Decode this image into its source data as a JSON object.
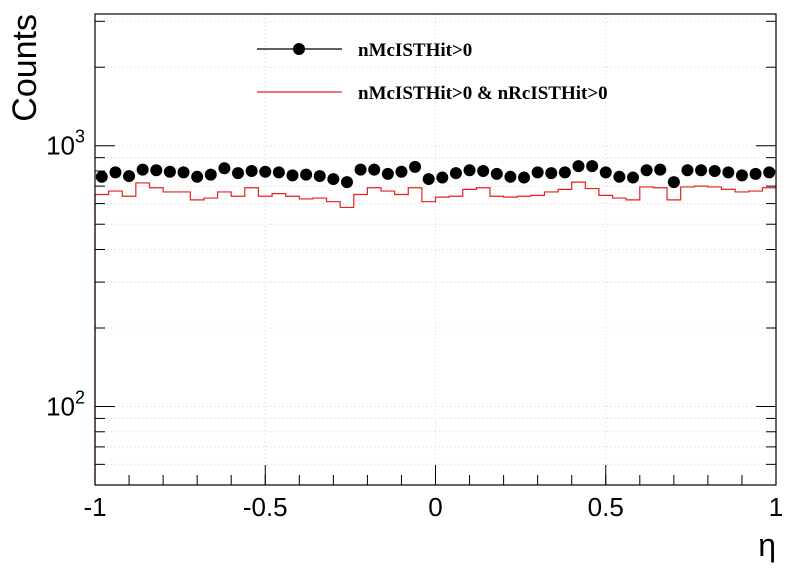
{
  "chart_data": {
    "type": "line",
    "xlabel": "η",
    "ylabel": "Counts",
    "xlim": [
      -1,
      1
    ],
    "ylim": [
      50,
      3200
    ],
    "y_scale": "log",
    "grid": true,
    "legend_position": "top-center",
    "x_ticks": [
      -1,
      -0.5,
      0,
      0.5,
      1
    ],
    "x_tick_labels": [
      "-1",
      "-0.5",
      "0",
      "0.5",
      "1"
    ],
    "y_ticks": [
      {
        "value": 100,
        "base": "10",
        "exp": "2"
      },
      {
        "value": 1000,
        "base": "10",
        "exp": "3"
      }
    ],
    "series": [
      {
        "name": "nMcISTHit>0",
        "style": "markers",
        "color": "#000000",
        "x": [
          -0.98,
          -0.94,
          -0.9,
          -0.86,
          -0.82,
          -0.78,
          -0.74,
          -0.7,
          -0.66,
          -0.62,
          -0.58,
          -0.54,
          -0.5,
          -0.46,
          -0.42,
          -0.38,
          -0.34,
          -0.3,
          -0.26,
          -0.22,
          -0.18,
          -0.14,
          -0.1,
          -0.06,
          -0.02,
          0.02,
          0.06,
          0.1,
          0.14,
          0.18,
          0.22,
          0.26,
          0.3,
          0.34,
          0.38,
          0.42,
          0.46,
          0.5,
          0.54,
          0.58,
          0.62,
          0.66,
          0.7,
          0.74,
          0.78,
          0.82,
          0.86,
          0.9,
          0.94,
          0.98
        ],
        "values": [
          760,
          790,
          765,
          810,
          805,
          795,
          790,
          760,
          775,
          820,
          785,
          800,
          795,
          790,
          770,
          775,
          765,
          745,
          725,
          810,
          810,
          780,
          795,
          830,
          745,
          755,
          785,
          805,
          800,
          780,
          760,
          755,
          790,
          785,
          790,
          835,
          835,
          790,
          760,
          755,
          805,
          810,
          725,
          805,
          805,
          800,
          790,
          770,
          780,
          790
        ]
      },
      {
        "name": "nMcISTHit>0 & nRcISTHit>0",
        "style": "step",
        "color": "#e8211d",
        "bin_edges": [
          -1,
          -0.96,
          -0.92,
          -0.88,
          -0.84,
          -0.8,
          -0.76,
          -0.72,
          -0.68,
          -0.64,
          -0.6,
          -0.56,
          -0.52,
          -0.48,
          -0.44,
          -0.4,
          -0.36,
          -0.32,
          -0.28,
          -0.24,
          -0.2,
          -0.16,
          -0.12,
          -0.08,
          -0.04,
          0,
          0.04,
          0.08,
          0.12,
          0.16,
          0.2,
          0.24,
          0.28,
          0.32,
          0.36,
          0.4,
          0.44,
          0.48,
          0.52,
          0.56,
          0.6,
          0.64,
          0.68,
          0.72,
          0.76,
          0.8,
          0.84,
          0.88,
          0.92,
          0.96,
          1
        ],
        "values": [
          650,
          670,
          640,
          720,
          690,
          665,
          665,
          620,
          630,
          665,
          640,
          690,
          640,
          655,
          640,
          625,
          630,
          610,
          580,
          650,
          690,
          670,
          650,
          690,
          610,
          635,
          640,
          680,
          690,
          640,
          635,
          640,
          645,
          665,
          680,
          725,
          685,
          645,
          630,
          620,
          695,
          690,
          620,
          695,
          700,
          695,
          680,
          665,
          670,
          690
        ]
      }
    ]
  }
}
